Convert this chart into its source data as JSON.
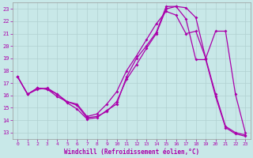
{
  "xlabel": "Windchill (Refroidissement éolien,°C)",
  "background_color": "#c8e8e8",
  "grid_color": "#b0d0d0",
  "line_color": "#aa00aa",
  "xlim": [
    -0.5,
    23.5
  ],
  "ylim": [
    12.5,
    23.5
  ],
  "xticks": [
    0,
    1,
    2,
    3,
    4,
    5,
    6,
    7,
    8,
    9,
    10,
    11,
    12,
    13,
    14,
    15,
    16,
    17,
    18,
    19,
    20,
    21,
    22,
    23
  ],
  "yticks": [
    13,
    14,
    15,
    16,
    17,
    18,
    19,
    20,
    21,
    22,
    23
  ],
  "line1_x": [
    0,
    1,
    2,
    3,
    4,
    5,
    6,
    7,
    8,
    9,
    10,
    11,
    12,
    13,
    14,
    15,
    16,
    17,
    18,
    19,
    20,
    21,
    22,
    23
  ],
  "line1_y": [
    17.5,
    16.1,
    16.6,
    16.5,
    16.1,
    15.4,
    14.9,
    14.1,
    14.2,
    14.8,
    15.3,
    17.5,
    19.0,
    20.0,
    21.1,
    23.2,
    23.2,
    23.1,
    22.3,
    19.0,
    16.1,
    13.5,
    13.0,
    12.8
  ],
  "line2_x": [
    0,
    1,
    2,
    3,
    4,
    5,
    6,
    7,
    8,
    9,
    10,
    11,
    12,
    13,
    14,
    15,
    16,
    17,
    18,
    19,
    20,
    21,
    22,
    23
  ],
  "line2_y": [
    17.5,
    16.1,
    16.5,
    16.6,
    16.1,
    15.5,
    15.2,
    14.2,
    14.3,
    14.7,
    15.5,
    17.3,
    18.5,
    19.8,
    21.0,
    23.0,
    23.2,
    22.2,
    18.9,
    18.9,
    15.9,
    13.4,
    12.9,
    12.7
  ],
  "line3_x": [
    0,
    1,
    2,
    3,
    4,
    5,
    6,
    7,
    8,
    9,
    10,
    11,
    12,
    13,
    14,
    15,
    16,
    17,
    18,
    19,
    20,
    21,
    22,
    23
  ],
  "line3_y": [
    17.5,
    16.1,
    16.6,
    16.5,
    15.9,
    15.5,
    15.3,
    14.3,
    14.5,
    15.3,
    16.3,
    18.0,
    19.2,
    20.5,
    21.8,
    22.8,
    22.5,
    21.0,
    21.2,
    19.0,
    21.2,
    21.2,
    16.1,
    13.0
  ]
}
